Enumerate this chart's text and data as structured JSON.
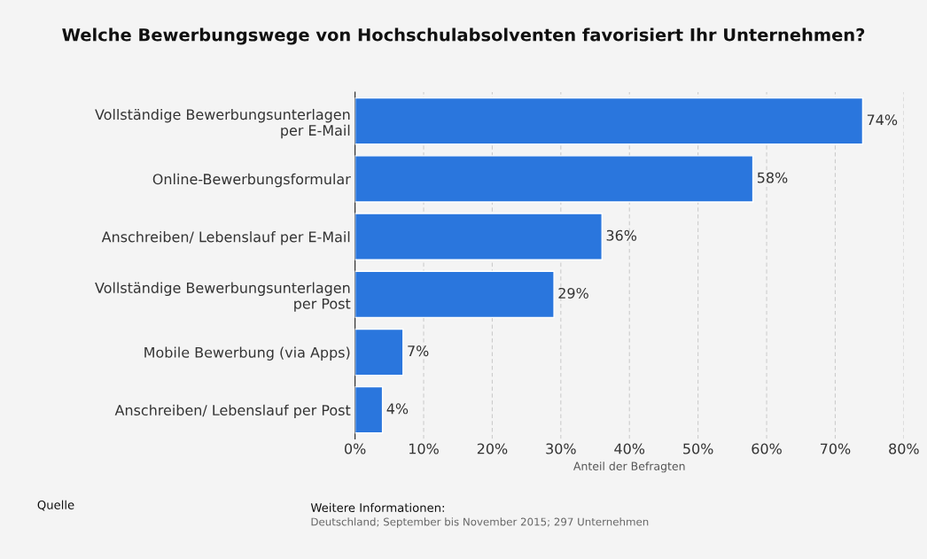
{
  "chart_data": {
    "type": "bar",
    "orientation": "horizontal",
    "title": "Welche Bewerbungswege von Hochschulabsolventen favorisiert Ihr Unternehmen?",
    "xlabel": "Anteil der Befragten",
    "categories": [
      "Vollständige Bewerbungsunterlagen\nper E-Mail",
      "Online-Bewerbungsformular",
      "Anschreiben/ Lebenslauf per E-Mail",
      "Vollständige Bewerbungsunterlagen\nper Post",
      "Mobile Bewerbung (via Apps)",
      "Anschreiben/ Lebenslauf per Post"
    ],
    "values": [
      74,
      58,
      36,
      29,
      7,
      4
    ],
    "value_labels": [
      "74%",
      "58%",
      "36%",
      "29%",
      "7%",
      "4%"
    ],
    "color": "#2a76dd",
    "xlim": [
      0,
      80
    ],
    "xticks": [
      {
        "value": 0,
        "label": "0%"
      },
      {
        "value": 10,
        "label": "10%"
      },
      {
        "value": 20,
        "label": "20%"
      },
      {
        "value": 30,
        "label": "30%"
      },
      {
        "value": 40,
        "label": "40%"
      },
      {
        "value": 50,
        "label": "50%"
      },
      {
        "value": 60,
        "label": "60%"
      },
      {
        "value": 70,
        "label": "70%"
      },
      {
        "value": 80,
        "label": "80%"
      }
    ],
    "grid": "x",
    "legend": false,
    "annotations": [
      "Quelle",
      "Weitere Informationen:",
      "Deutschland; September bis November 2015; 297 Unternehmen"
    ]
  }
}
